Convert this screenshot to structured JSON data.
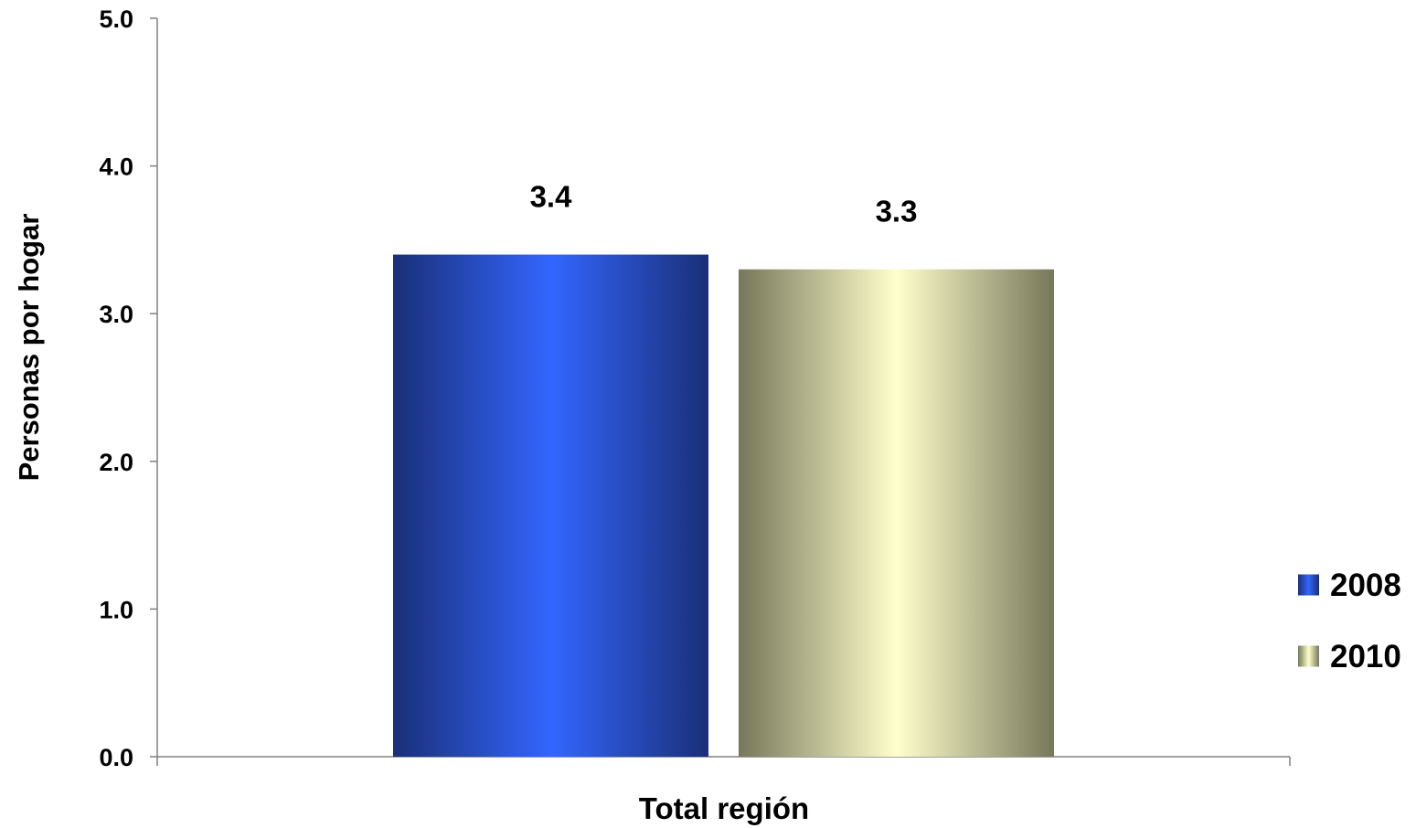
{
  "chart_data": {
    "type": "bar",
    "title": "",
    "xlabel": "Total región",
    "ylabel": "Personas por hogar",
    "categories": [
      "Total región"
    ],
    "ylim": [
      0,
      5
    ],
    "yticks": [
      "0.0",
      "1.0",
      "2.0",
      "3.0",
      "4.0",
      "5.0"
    ],
    "grid": false,
    "legend_position": "right",
    "series": [
      {
        "name": "2008",
        "values": [
          3.4
        ],
        "value_labels": [
          "3.4"
        ],
        "color": "#3366ff",
        "color_dark": "#1a2f78"
      },
      {
        "name": "2010",
        "values": [
          3.3
        ],
        "value_labels": [
          "3.3"
        ],
        "color": "#ffffcc",
        "color_dark": "#77775a"
      }
    ]
  }
}
